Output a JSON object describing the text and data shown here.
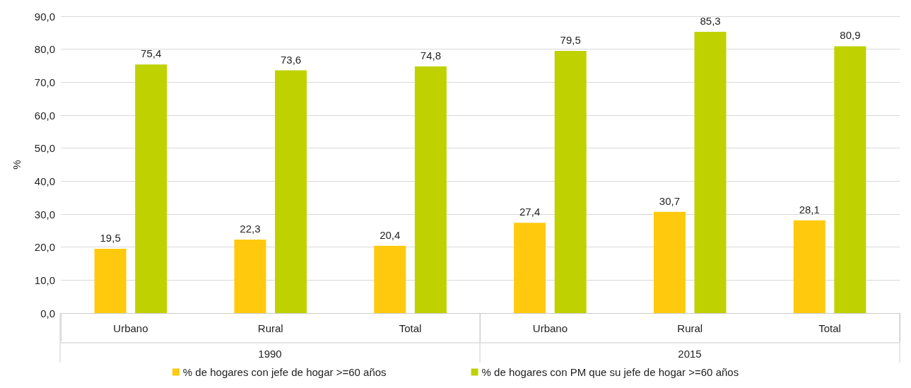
{
  "chart_data": {
    "type": "bar",
    "ylabel": "%",
    "categories": [
      "Urbano",
      "Rural",
      "Total",
      "Urbano",
      "Rural",
      "Total"
    ],
    "annotations": [
      "1990",
      "2015"
    ],
    "series": [
      {
        "name": "% de hogares con jefe de hogar >=60 años",
        "color": "#ffc90e",
        "values": [
          19.5,
          22.3,
          20.4,
          27.4,
          30.7,
          28.1
        ],
        "value_labels": [
          "19,5",
          "22,3",
          "20,4",
          "27,4",
          "30,7",
          "28,1"
        ]
      },
      {
        "name": "% de hogares con PM que su jefe de hogar >=60 años",
        "color": "#bfd200",
        "values": [
          75.4,
          73.6,
          74.8,
          79.5,
          85.3,
          80.9
        ],
        "value_labels": [
          "75,4",
          "73,6",
          "74,8",
          "79,5",
          "85,3",
          "80,9"
        ]
      }
    ],
    "ylim": [
      0,
      90
    ],
    "yticks": [
      {
        "value": 0,
        "label": "0,0"
      },
      {
        "value": 10,
        "label": "10,0"
      },
      {
        "value": 20,
        "label": "20,0"
      },
      {
        "value": 30,
        "label": "30,0"
      },
      {
        "value": 40,
        "label": "40,0"
      },
      {
        "value": 50,
        "label": "50,0"
      },
      {
        "value": 60,
        "label": "60,0"
      },
      {
        "value": 70,
        "label": "70,0"
      },
      {
        "value": 80,
        "label": "80,0"
      },
      {
        "value": 90,
        "label": "90,0"
      }
    ],
    "grid": "y",
    "legend": "bottom"
  }
}
